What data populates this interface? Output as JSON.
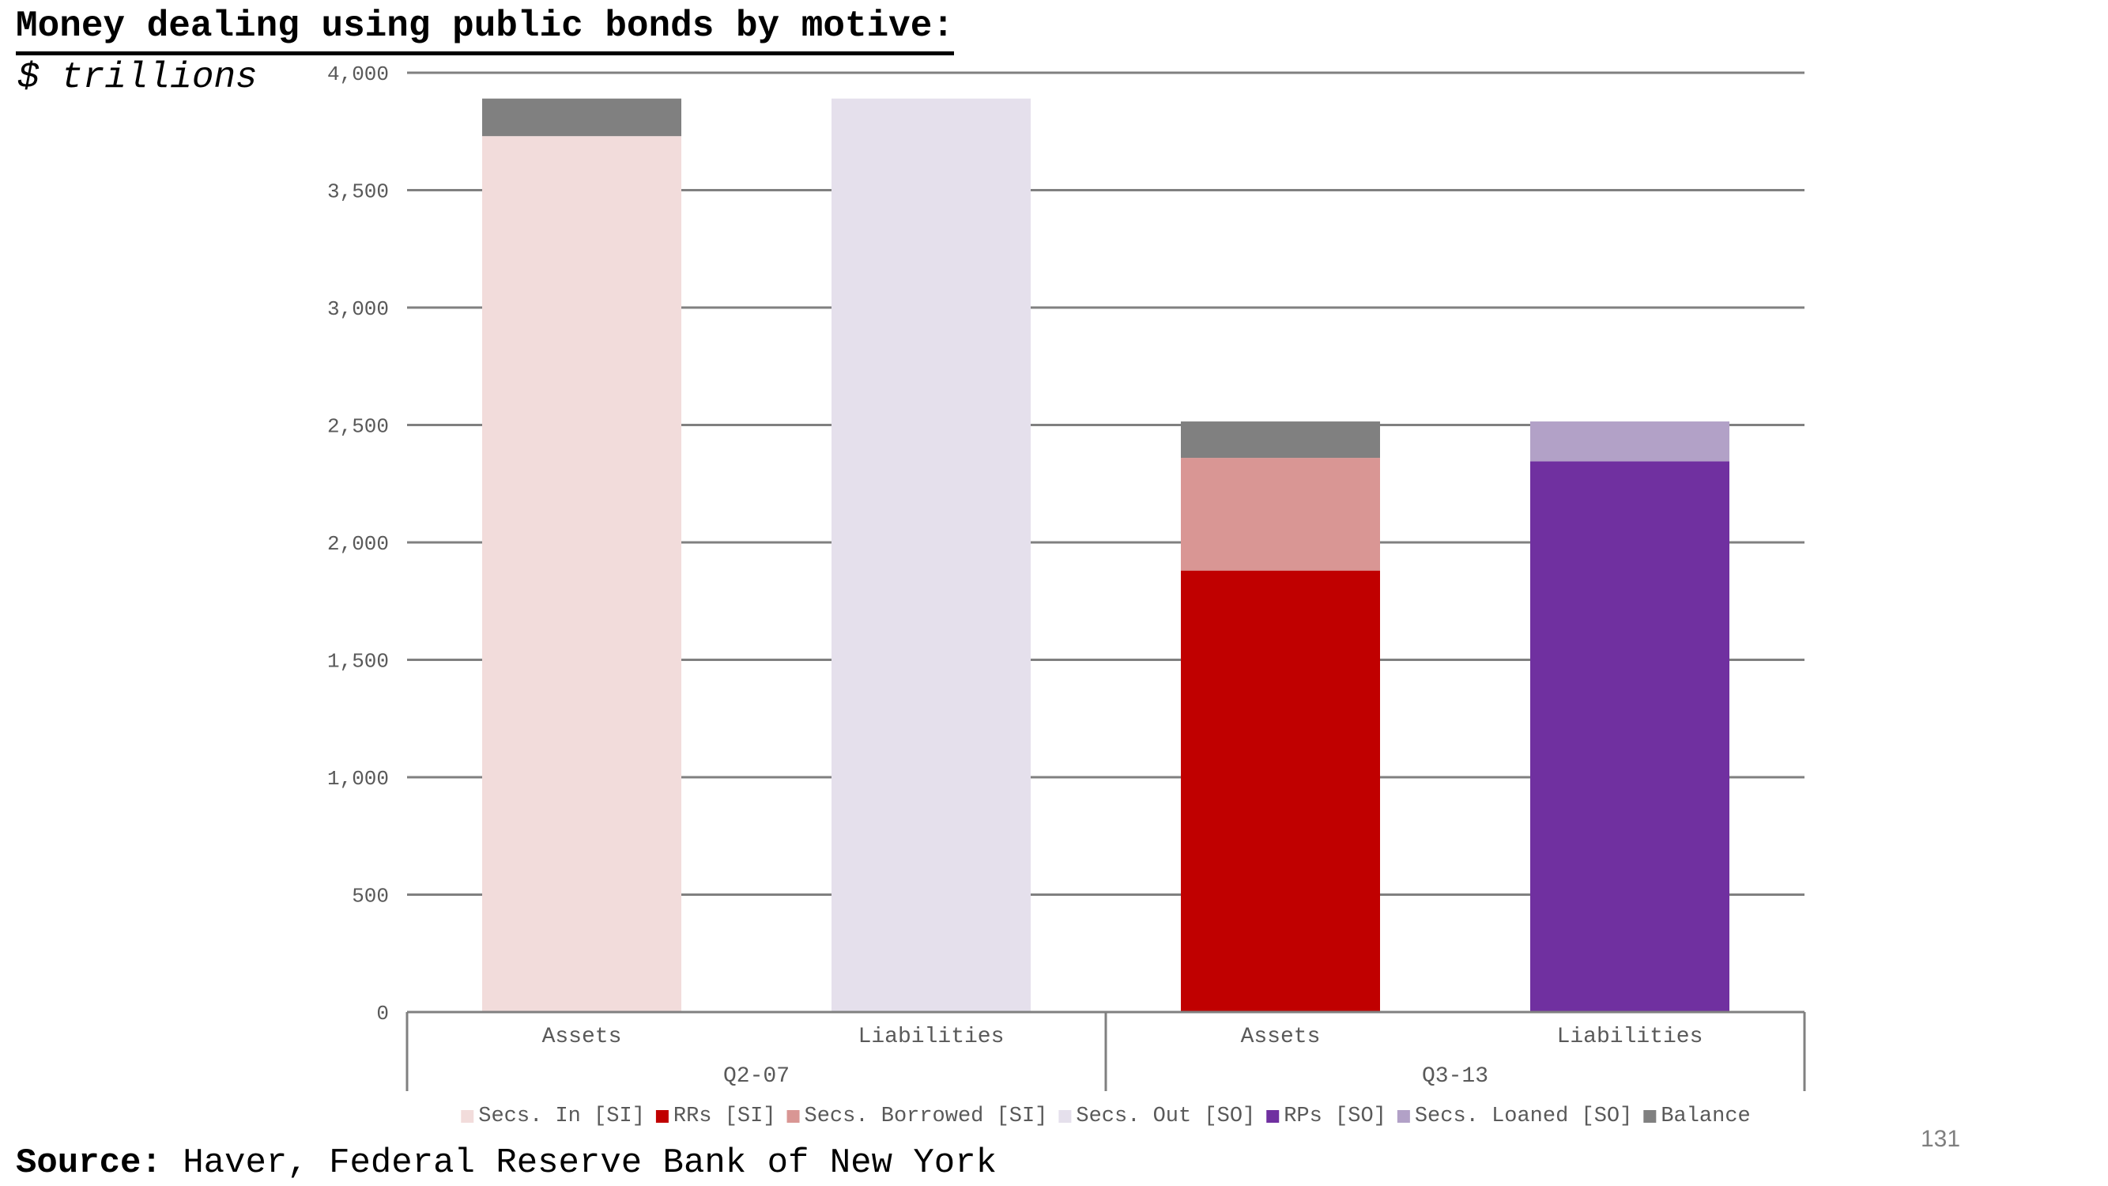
{
  "title": "Money dealing using public bonds by motive:",
  "subtitle": "$ trillions",
  "source": {
    "label": "Source:",
    "text": " Haver, Federal Reserve Bank of New York"
  },
  "page_number": "131",
  "chart_data": {
    "type": "bar",
    "stacked": true,
    "title": "Money dealing using public bonds by motive:",
    "ylabel": "$ trillions",
    "ylim": [
      0,
      4000
    ],
    "yticks": [
      0,
      500,
      1000,
      1500,
      2000,
      2500,
      3000,
      3500,
      4000
    ],
    "ytick_labels": [
      "0",
      "500",
      "1,000",
      "1,500",
      "2,000",
      "2,500",
      "3,000",
      "3,500",
      "4,000"
    ],
    "grid": true,
    "legend_position": "bottom",
    "categories": [
      "Assets",
      "Liabilities",
      "Assets",
      "Liabilities"
    ],
    "groups": [
      {
        "label": "Q2-07",
        "categories": [
          0,
          1
        ]
      },
      {
        "label": "Q3-13",
        "categories": [
          2,
          3
        ]
      }
    ],
    "series": [
      {
        "name": "Secs. In [SI]",
        "color": "#f2dcdb",
        "values": [
          3730,
          0,
          0,
          0
        ]
      },
      {
        "name": "RRs [SI]",
        "color": "#c00000",
        "values": [
          0,
          0,
          1880,
          0
        ]
      },
      {
        "name": "Secs. Borrowed [SI]",
        "color": "#d99694",
        "values": [
          0,
          0,
          480,
          0
        ]
      },
      {
        "name": "Secs. Out [SO]",
        "color": "#e5e0ec",
        "values": [
          0,
          3890,
          0,
          0
        ]
      },
      {
        "name": "RPs [SO]",
        "color": "#7030a0",
        "values": [
          0,
          0,
          0,
          2345
        ]
      },
      {
        "name": "Secs. Loaned [SO]",
        "color": "#b2a1c7",
        "values": [
          0,
          0,
          0,
          170
        ]
      },
      {
        "name": "Balance",
        "color": "#808080",
        "values": [
          160,
          0,
          155,
          0
        ]
      }
    ]
  }
}
